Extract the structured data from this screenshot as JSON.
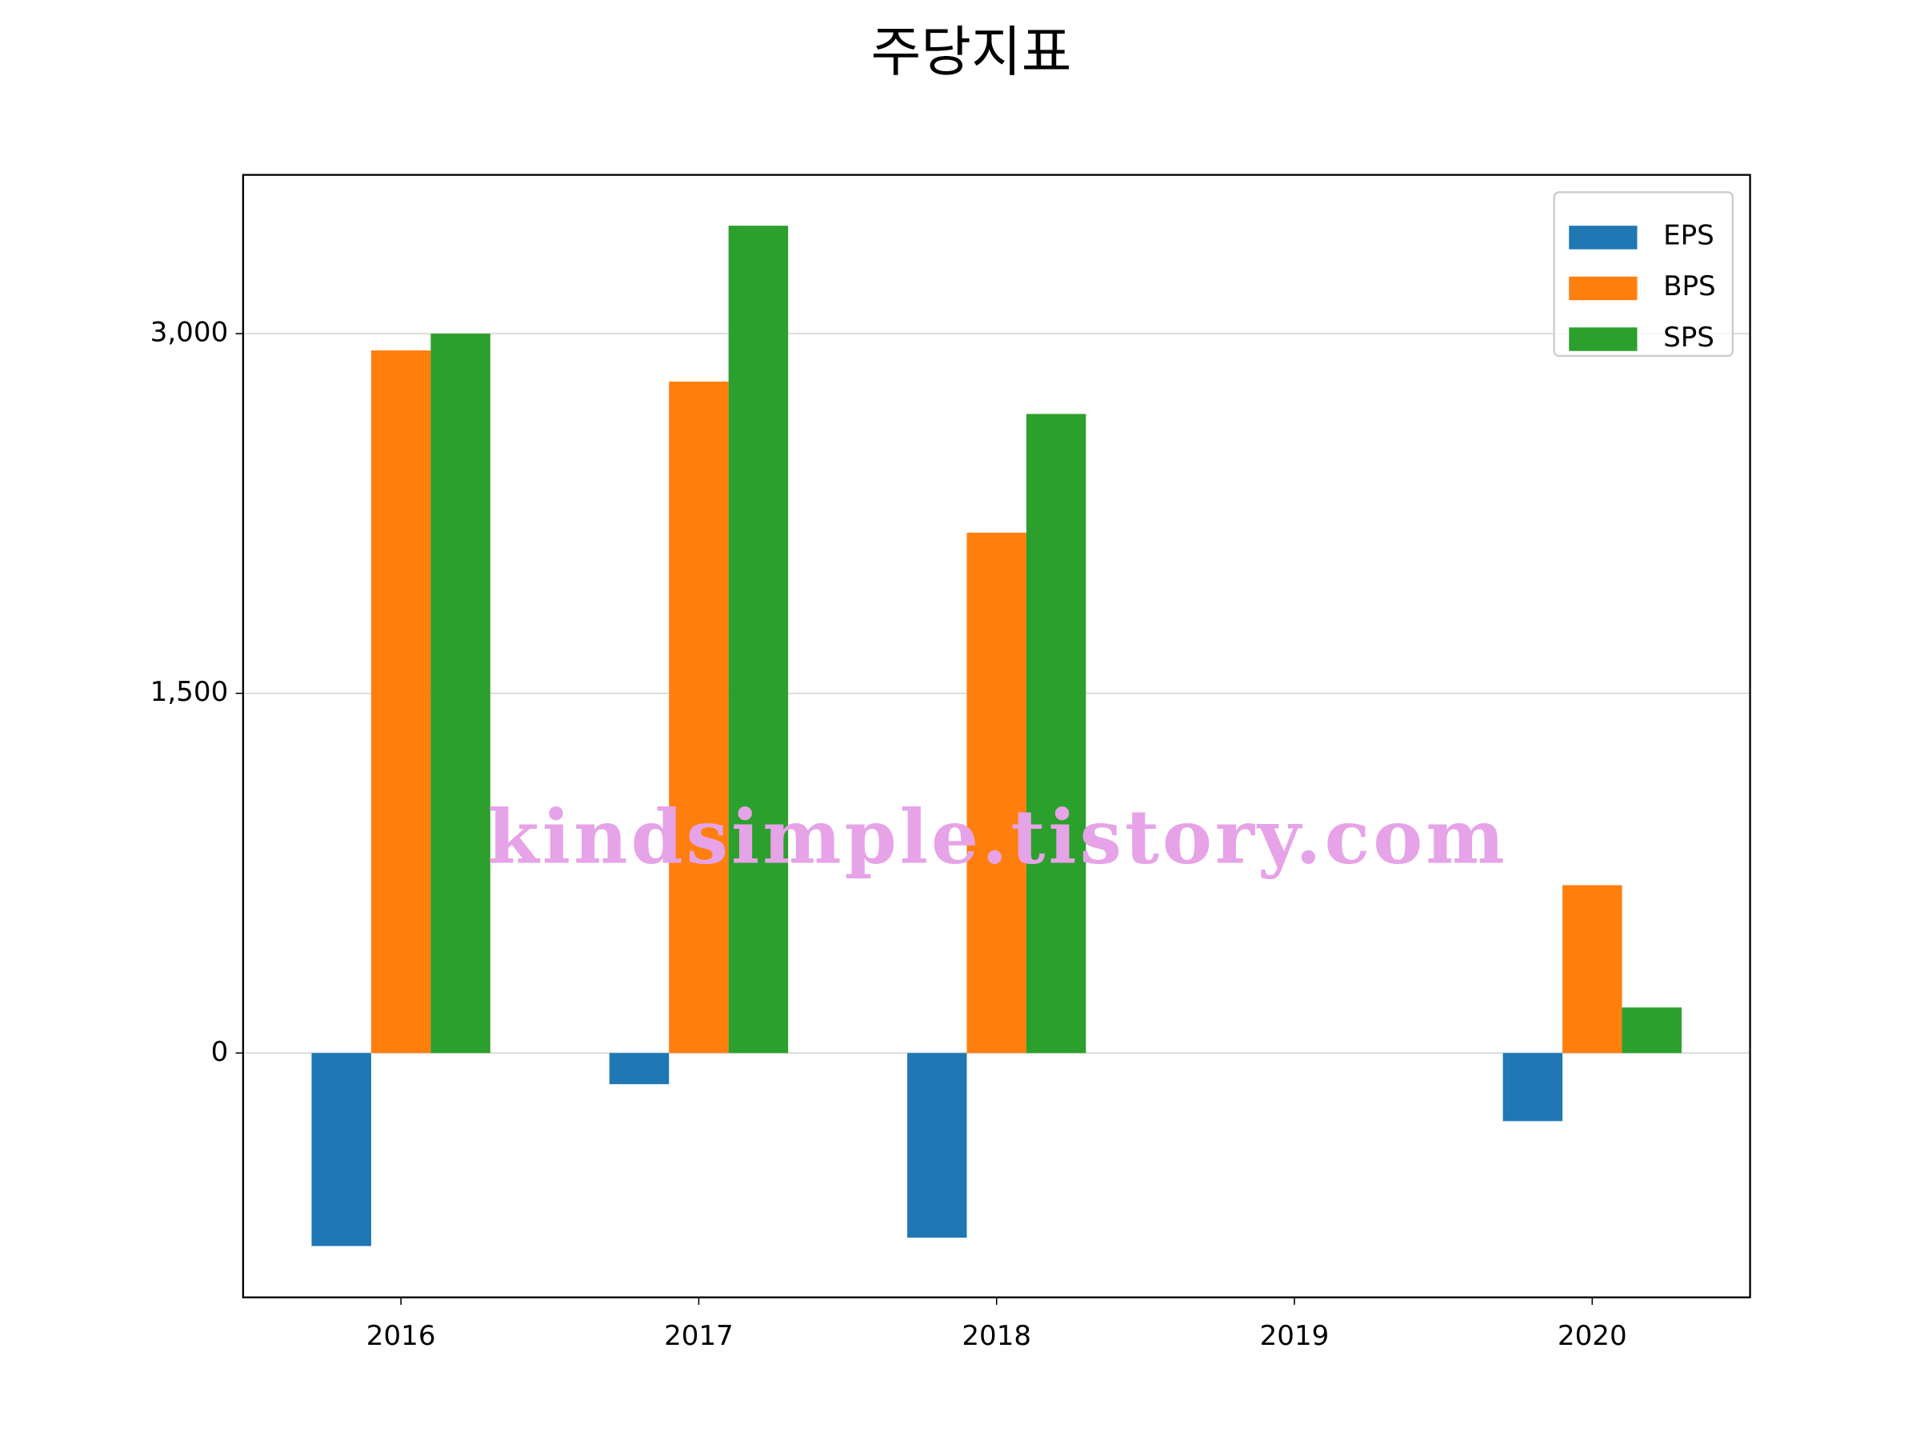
{
  "chart_data": {
    "type": "bar",
    "title": "주당지표",
    "categories": [
      "2016",
      "2017",
      "2018",
      "2019",
      "2020"
    ],
    "series": [
      {
        "name": "EPS",
        "color": "#1f77b4",
        "values": [
          -805,
          -130,
          -770,
          null,
          -284
        ]
      },
      {
        "name": "BPS",
        "color": "#ff7f0e",
        "values": [
          2930,
          2800,
          2170,
          null,
          700
        ]
      },
      {
        "name": "SPS",
        "color": "#2ca02c",
        "values": [
          3000,
          3450,
          2665,
          null,
          190
        ]
      }
    ],
    "ylim": [
      -1019,
      3662
    ],
    "yticks": [
      0,
      {
        "value": 1500,
        "label": "1,500"
      },
      {
        "value": 3000,
        "label": "3,000"
      }
    ],
    "grid": true,
    "legend": "upper right",
    "watermark": "kindsimple.tistory.com"
  }
}
